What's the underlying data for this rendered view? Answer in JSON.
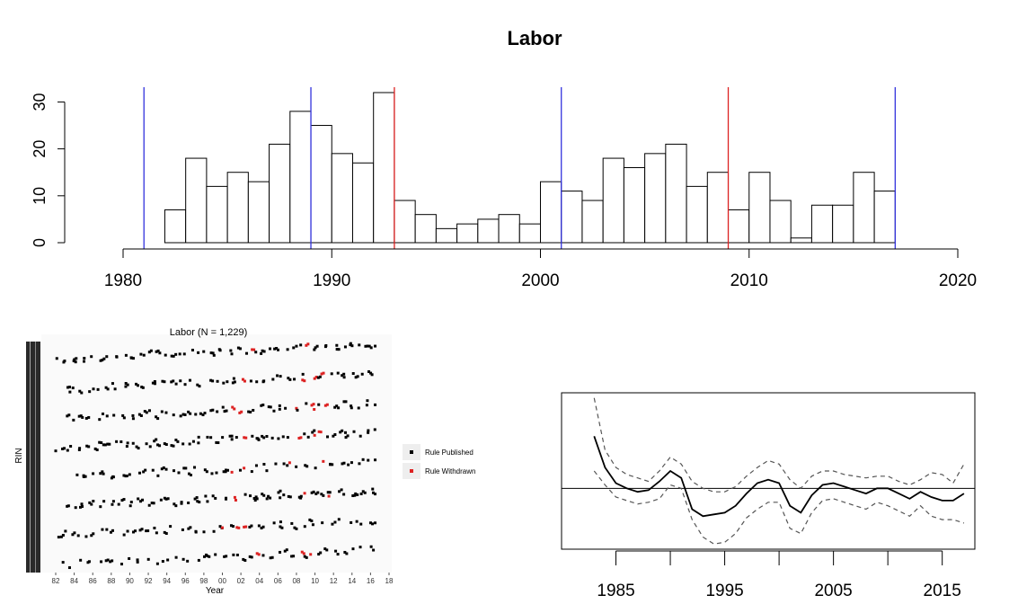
{
  "title": "Labor",
  "chart_data": [
    {
      "type": "bar",
      "title": "Labor",
      "xlim": [
        1980,
        2020
      ],
      "ylim": [
        0,
        32
      ],
      "xticks": [
        "1980",
        "1990",
        "2000",
        "2010",
        "2020"
      ],
      "yticks": [
        "0",
        "10",
        "20",
        "30"
      ],
      "bin_start": 1982,
      "bin_width": 1,
      "values": [
        7,
        18,
        12,
        15,
        13,
        21,
        28,
        25,
        19,
        17,
        32,
        9,
        6,
        3,
        4,
        5,
        6,
        4,
        13,
        11,
        9,
        18,
        16,
        19,
        21,
        12,
        15,
        7,
        15,
        9,
        1,
        8,
        8,
        15,
        11
      ],
      "vlines": [
        {
          "x": 1981,
          "color": "#3333dd"
        },
        {
          "x": 1989,
          "color": "#3333dd"
        },
        {
          "x": 1993,
          "color": "#dd2222"
        },
        {
          "x": 2001,
          "color": "#3333dd"
        },
        {
          "x": 2009,
          "color": "#dd2222"
        },
        {
          "x": 2017,
          "color": "#3333dd"
        }
      ]
    },
    {
      "type": "scatter",
      "title": "Labor (N = 1,229)",
      "xlabel": "Year",
      "ylabel": "RIN",
      "xticks": [
        "82",
        "84",
        "86",
        "88",
        "90",
        "92",
        "94",
        "96",
        "98",
        "00",
        "02",
        "04",
        "06",
        "08",
        "10",
        "12",
        "14",
        "16",
        "18"
      ],
      "legend": [
        {
          "label": "Rule Published",
          "color": "#000000"
        },
        {
          "label": "Rule Withdrawn",
          "color": "#dd2222"
        }
      ],
      "bands": [
        {
          "y0": 0.07,
          "y1": 0.14,
          "x0": 1982,
          "x1": 2016.5,
          "n": 62,
          "red": [
            [
              2002,
              2004
            ],
            [
              2009,
              2011
            ]
          ]
        },
        {
          "y0": 0.05,
          "y1": 0.16,
          "x0": 1983,
          "x1": 2016.5,
          "n": 55,
          "red": [
            [
              2001.5,
              2002.5
            ],
            [
              2008,
              2011
            ]
          ]
        },
        {
          "y0": 0.04,
          "y1": 0.16,
          "x0": 1983,
          "x1": 2016.5,
          "n": 58,
          "red": [
            [
              2001,
              2003
            ],
            [
              2007,
              2012
            ]
          ]
        },
        {
          "y0": 0.05,
          "y1": 0.19,
          "x0": 1982,
          "x1": 2016.5,
          "n": 62,
          "red": [
            [
              2001,
              2003
            ],
            [
              2008,
              2011
            ]
          ]
        },
        {
          "y0": 0.04,
          "y1": 0.14,
          "x0": 1984,
          "x1": 2016.5,
          "n": 52,
          "red": [
            [
              2001,
              2003
            ],
            [
              2006,
              2011
            ]
          ]
        },
        {
          "y0": 0.05,
          "y1": 0.2,
          "x0": 1983,
          "x1": 2016.5,
          "n": 64,
          "red": [
            [
              2001,
              2003
            ],
            [
              2008,
              2012
            ]
          ]
        },
        {
          "y0": 0.04,
          "y1": 0.18,
          "x0": 1982,
          "x1": 2016.5,
          "n": 50,
          "red": [
            [
              2000,
              2004
            ],
            [
              2009,
              2011
            ]
          ]
        },
        {
          "y0": 0.03,
          "y1": 0.15,
          "x0": 1983,
          "x1": 2016.5,
          "n": 46,
          "red": [
            [
              2003,
              2004
            ],
            [
              2008,
              2010
            ]
          ]
        }
      ]
    },
    {
      "type": "line",
      "xlim": [
        1980,
        2018
      ],
      "ylim": [
        -0.35,
        0.55
      ],
      "xticks": [
        "1985",
        "1995",
        "2005",
        "2015"
      ],
      "hline": 0,
      "series": [
        {
          "style": "solid",
          "x": [
            1983,
            1984,
            1985,
            1986,
            1987,
            1988,
            1989,
            1990,
            1991,
            1992,
            1993,
            1994,
            1995,
            1996,
            1997,
            1998,
            1999,
            2000,
            2001,
            2002,
            2003,
            2004,
            2005,
            2006,
            2007,
            2008,
            2009,
            2010,
            2011,
            2012,
            2013,
            2014,
            2015,
            2016,
            2017
          ],
          "y": [
            0.3,
            0.12,
            0.03,
            0.0,
            -0.02,
            -0.01,
            0.04,
            0.1,
            0.06,
            -0.12,
            -0.16,
            -0.15,
            -0.14,
            -0.1,
            -0.03,
            0.03,
            0.05,
            0.03,
            -0.1,
            -0.14,
            -0.04,
            0.02,
            0.03,
            0.01,
            -0.01,
            -0.03,
            0.0,
            0.0,
            -0.03,
            -0.06,
            -0.02,
            -0.05,
            -0.07,
            -0.07,
            -0.03
          ]
        },
        {
          "style": "dashed",
          "x": [
            1983,
            1984,
            1985,
            1986,
            1987,
            1988,
            1989,
            1990,
            1991,
            1992,
            1993,
            1994,
            1995,
            1996,
            1997,
            1998,
            1999,
            2000,
            2001,
            2002,
            2003,
            2004,
            2005,
            2006,
            2007,
            2008,
            2009,
            2010,
            2011,
            2012,
            2013,
            2014,
            2015,
            2016,
            2017
          ],
          "y": [
            0.52,
            0.22,
            0.12,
            0.08,
            0.06,
            0.04,
            0.1,
            0.18,
            0.14,
            0.04,
            0.0,
            -0.02,
            -0.02,
            0.01,
            0.07,
            0.12,
            0.16,
            0.14,
            0.05,
            0.0,
            0.07,
            0.1,
            0.1,
            0.08,
            0.07,
            0.06,
            0.07,
            0.07,
            0.04,
            0.02,
            0.05,
            0.09,
            0.08,
            0.03,
            0.14
          ]
        },
        {
          "style": "dashed",
          "x": [
            1983,
            1984,
            1985,
            1986,
            1987,
            1988,
            1989,
            1990,
            1991,
            1992,
            1993,
            1994,
            1995,
            1996,
            1997,
            1998,
            1999,
            2000,
            2001,
            2002,
            2003,
            2004,
            2005,
            2006,
            2007,
            2008,
            2009,
            2010,
            2011,
            2012,
            2013,
            2014,
            2015,
            2016,
            2017
          ],
          "y": [
            0.1,
            0.02,
            -0.05,
            -0.07,
            -0.09,
            -0.08,
            -0.06,
            0.02,
            0.0,
            -0.18,
            -0.28,
            -0.32,
            -0.31,
            -0.26,
            -0.17,
            -0.12,
            -0.08,
            -0.08,
            -0.23,
            -0.26,
            -0.14,
            -0.07,
            -0.06,
            -0.08,
            -0.1,
            -0.12,
            -0.08,
            -0.1,
            -0.13,
            -0.16,
            -0.1,
            -0.16,
            -0.18,
            -0.18,
            -0.2
          ]
        }
      ]
    }
  ]
}
